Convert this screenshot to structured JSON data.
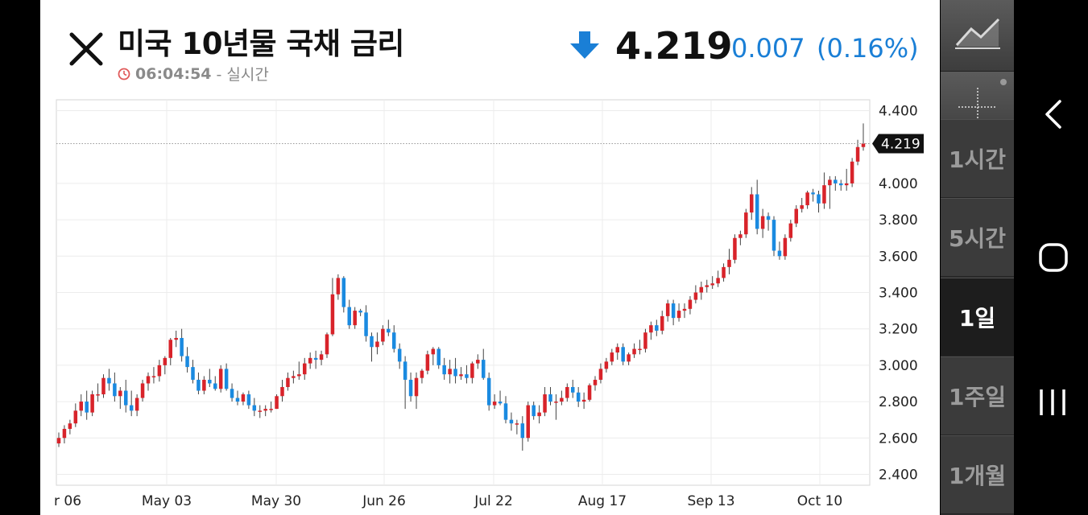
{
  "header": {
    "title": "미국 10년물 국채 금리",
    "time": "06:04:54",
    "status": "- 실시간",
    "price": "4.219",
    "change": "0.007",
    "change_pct": "(0.16%)",
    "direction": "down",
    "change_color": "#1a7fd6"
  },
  "toolbar": {
    "tools": [
      "line-chart-icon",
      "crosshair-icon"
    ],
    "timeframes": [
      {
        "label": "1시간",
        "active": false
      },
      {
        "label": "5시간",
        "active": false
      },
      {
        "label": "1일",
        "active": true
      },
      {
        "label": "1주일",
        "active": false
      },
      {
        "label": "1개월",
        "active": false
      }
    ]
  },
  "nav": {
    "icons": [
      "back-icon",
      "home-icon",
      "recents-icon"
    ]
  },
  "chart_data": {
    "type": "candlestick",
    "last_value_label": "4.219",
    "last_value": 4.219,
    "y_ticks": [
      "4.400",
      "4.000",
      "3.800",
      "3.600",
      "3.400",
      "3.200",
      "3.000",
      "2.800",
      "2.600",
      "2.400"
    ],
    "ylim": [
      2.34,
      4.46
    ],
    "x_ticks": [
      "r 06",
      "May 03",
      "May 30",
      "Jun 26",
      "Jul 22",
      "Aug 17",
      "Sep 13",
      "Oct 10"
    ],
    "up_color": "#d8232a",
    "down_color": "#1a8ae0",
    "grid": true,
    "candles": [
      {
        "o": 2.57,
        "h": 2.63,
        "l": 2.55,
        "c": 2.6
      },
      {
        "o": 2.6,
        "h": 2.67,
        "l": 2.57,
        "c": 2.65
      },
      {
        "o": 2.65,
        "h": 2.7,
        "l": 2.62,
        "c": 2.68
      },
      {
        "o": 2.68,
        "h": 2.79,
        "l": 2.66,
        "c": 2.75
      },
      {
        "o": 2.75,
        "h": 2.84,
        "l": 2.72,
        "c": 2.8
      },
      {
        "o": 2.8,
        "h": 2.86,
        "l": 2.7,
        "c": 2.74
      },
      {
        "o": 2.74,
        "h": 2.86,
        "l": 2.72,
        "c": 2.84
      },
      {
        "o": 2.84,
        "h": 2.9,
        "l": 2.8,
        "c": 2.84
      },
      {
        "o": 2.84,
        "h": 2.95,
        "l": 2.82,
        "c": 2.93
      },
      {
        "o": 2.93,
        "h": 2.98,
        "l": 2.86,
        "c": 2.9
      },
      {
        "o": 2.9,
        "h": 2.96,
        "l": 2.8,
        "c": 2.83
      },
      {
        "o": 2.83,
        "h": 2.88,
        "l": 2.76,
        "c": 2.86
      },
      {
        "o": 2.86,
        "h": 2.92,
        "l": 2.74,
        "c": 2.78
      },
      {
        "o": 2.78,
        "h": 2.86,
        "l": 2.72,
        "c": 2.75
      },
      {
        "o": 2.75,
        "h": 2.84,
        "l": 2.72,
        "c": 2.82
      },
      {
        "o": 2.82,
        "h": 2.92,
        "l": 2.8,
        "c": 2.9
      },
      {
        "o": 2.9,
        "h": 2.96,
        "l": 2.86,
        "c": 2.94
      },
      {
        "o": 2.94,
        "h": 2.99,
        "l": 2.9,
        "c": 2.94
      },
      {
        "o": 2.94,
        "h": 3.03,
        "l": 2.91,
        "c": 3.0
      },
      {
        "o": 3.0,
        "h": 3.05,
        "l": 2.95,
        "c": 3.04
      },
      {
        "o": 3.04,
        "h": 3.15,
        "l": 3.0,
        "c": 3.14
      },
      {
        "o": 3.14,
        "h": 3.19,
        "l": 3.1,
        "c": 3.15
      },
      {
        "o": 3.15,
        "h": 3.2,
        "l": 3.02,
        "c": 3.05
      },
      {
        "o": 3.05,
        "h": 3.1,
        "l": 2.96,
        "c": 2.99
      },
      {
        "o": 2.99,
        "h": 3.03,
        "l": 2.9,
        "c": 2.92
      },
      {
        "o": 2.92,
        "h": 2.96,
        "l": 2.84,
        "c": 2.86
      },
      {
        "o": 2.86,
        "h": 2.94,
        "l": 2.84,
        "c": 2.92
      },
      {
        "o": 2.92,
        "h": 2.98,
        "l": 2.88,
        "c": 2.9
      },
      {
        "o": 2.9,
        "h": 2.94,
        "l": 2.86,
        "c": 2.87
      },
      {
        "o": 2.87,
        "h": 3.0,
        "l": 2.85,
        "c": 2.98
      },
      {
        "o": 2.98,
        "h": 3.01,
        "l": 2.86,
        "c": 2.87
      },
      {
        "o": 2.87,
        "h": 2.9,
        "l": 2.8,
        "c": 2.82
      },
      {
        "o": 2.82,
        "h": 2.86,
        "l": 2.78,
        "c": 2.8
      },
      {
        "o": 2.8,
        "h": 2.85,
        "l": 2.78,
        "c": 2.84
      },
      {
        "o": 2.84,
        "h": 2.86,
        "l": 2.76,
        "c": 2.78
      },
      {
        "o": 2.78,
        "h": 2.82,
        "l": 2.72,
        "c": 2.75
      },
      {
        "o": 2.75,
        "h": 2.78,
        "l": 2.71,
        "c": 2.75
      },
      {
        "o": 2.75,
        "h": 2.78,
        "l": 2.72,
        "c": 2.76
      },
      {
        "o": 2.76,
        "h": 2.8,
        "l": 2.74,
        "c": 2.76
      },
      {
        "o": 2.76,
        "h": 2.84,
        "l": 2.76,
        "c": 2.83
      },
      {
        "o": 2.83,
        "h": 2.92,
        "l": 2.8,
        "c": 2.88
      },
      {
        "o": 2.88,
        "h": 2.96,
        "l": 2.86,
        "c": 2.93
      },
      {
        "o": 2.93,
        "h": 2.97,
        "l": 2.9,
        "c": 2.94
      },
      {
        "o": 2.94,
        "h": 3.02,
        "l": 2.92,
        "c": 2.95
      },
      {
        "o": 2.95,
        "h": 3.04,
        "l": 2.92,
        "c": 3.01
      },
      {
        "o": 3.01,
        "h": 3.07,
        "l": 2.98,
        "c": 3.04
      },
      {
        "o": 3.04,
        "h": 3.08,
        "l": 2.98,
        "c": 3.03
      },
      {
        "o": 3.03,
        "h": 3.08,
        "l": 3.0,
        "c": 3.06
      },
      {
        "o": 3.06,
        "h": 3.18,
        "l": 3.04,
        "c": 3.17
      },
      {
        "o": 3.17,
        "h": 3.48,
        "l": 3.16,
        "c": 3.39
      },
      {
        "o": 3.39,
        "h": 3.5,
        "l": 3.36,
        "c": 3.48
      },
      {
        "o": 3.48,
        "h": 3.49,
        "l": 3.29,
        "c": 3.32
      },
      {
        "o": 3.32,
        "h": 3.36,
        "l": 3.2,
        "c": 3.22
      },
      {
        "o": 3.22,
        "h": 3.32,
        "l": 3.2,
        "c": 3.3
      },
      {
        "o": 3.3,
        "h": 3.31,
        "l": 3.27,
        "c": 3.29
      },
      {
        "o": 3.29,
        "h": 3.33,
        "l": 3.13,
        "c": 3.16
      },
      {
        "o": 3.16,
        "h": 3.18,
        "l": 3.02,
        "c": 3.1
      },
      {
        "o": 3.1,
        "h": 3.18,
        "l": 3.06,
        "c": 3.13
      },
      {
        "o": 3.13,
        "h": 3.22,
        "l": 3.11,
        "c": 3.2
      },
      {
        "o": 3.2,
        "h": 3.25,
        "l": 3.16,
        "c": 3.18
      },
      {
        "o": 3.18,
        "h": 3.22,
        "l": 3.07,
        "c": 3.09
      },
      {
        "o": 3.09,
        "h": 3.12,
        "l": 2.98,
        "c": 3.02
      },
      {
        "o": 3.02,
        "h": 3.05,
        "l": 2.76,
        "c": 2.92
      },
      {
        "o": 2.92,
        "h": 2.96,
        "l": 2.8,
        "c": 2.83
      },
      {
        "o": 2.83,
        "h": 2.96,
        "l": 2.76,
        "c": 2.93
      },
      {
        "o": 2.93,
        "h": 2.98,
        "l": 2.9,
        "c": 2.97
      },
      {
        "o": 2.97,
        "h": 3.08,
        "l": 2.95,
        "c": 3.06
      },
      {
        "o": 3.06,
        "h": 3.1,
        "l": 3.0,
        "c": 3.09
      },
      {
        "o": 3.09,
        "h": 3.1,
        "l": 2.98,
        "c": 3.0
      },
      {
        "o": 3.0,
        "h": 3.04,
        "l": 2.92,
        "c": 2.95
      },
      {
        "o": 2.95,
        "h": 3.03,
        "l": 2.9,
        "c": 2.98
      },
      {
        "o": 2.98,
        "h": 3.04,
        "l": 2.9,
        "c": 2.94
      },
      {
        "o": 2.94,
        "h": 2.99,
        "l": 2.92,
        "c": 2.95
      },
      {
        "o": 2.95,
        "h": 3.0,
        "l": 2.9,
        "c": 2.93
      },
      {
        "o": 2.93,
        "h": 3.02,
        "l": 2.9,
        "c": 3.01
      },
      {
        "o": 3.01,
        "h": 3.06,
        "l": 2.98,
        "c": 3.03
      },
      {
        "o": 3.03,
        "h": 3.09,
        "l": 2.92,
        "c": 2.93
      },
      {
        "o": 2.93,
        "h": 2.96,
        "l": 2.75,
        "c": 2.78
      },
      {
        "o": 2.78,
        "h": 2.84,
        "l": 2.76,
        "c": 2.8
      },
      {
        "o": 2.8,
        "h": 2.86,
        "l": 2.78,
        "c": 2.79
      },
      {
        "o": 2.79,
        "h": 2.83,
        "l": 2.68,
        "c": 2.7
      },
      {
        "o": 2.7,
        "h": 2.74,
        "l": 2.64,
        "c": 2.68
      },
      {
        "o": 2.68,
        "h": 2.7,
        "l": 2.62,
        "c": 2.68
      },
      {
        "o": 2.68,
        "h": 2.72,
        "l": 2.53,
        "c": 2.6
      },
      {
        "o": 2.6,
        "h": 2.8,
        "l": 2.58,
        "c": 2.78
      },
      {
        "o": 2.78,
        "h": 2.8,
        "l": 2.7,
        "c": 2.72
      },
      {
        "o": 2.72,
        "h": 2.78,
        "l": 2.68,
        "c": 2.74
      },
      {
        "o": 2.74,
        "h": 2.88,
        "l": 2.72,
        "c": 2.84
      },
      {
        "o": 2.84,
        "h": 2.88,
        "l": 2.78,
        "c": 2.8
      },
      {
        "o": 2.8,
        "h": 2.84,
        "l": 2.7,
        "c": 2.8
      },
      {
        "o": 2.8,
        "h": 2.86,
        "l": 2.78,
        "c": 2.82
      },
      {
        "o": 2.82,
        "h": 2.9,
        "l": 2.8,
        "c": 2.88
      },
      {
        "o": 2.88,
        "h": 2.92,
        "l": 2.82,
        "c": 2.85
      },
      {
        "o": 2.85,
        "h": 2.88,
        "l": 2.77,
        "c": 2.8
      },
      {
        "o": 2.8,
        "h": 2.85,
        "l": 2.76,
        "c": 2.81
      },
      {
        "o": 2.81,
        "h": 2.9,
        "l": 2.8,
        "c": 2.89
      },
      {
        "o": 2.89,
        "h": 2.94,
        "l": 2.86,
        "c": 2.92
      },
      {
        "o": 2.92,
        "h": 3.01,
        "l": 2.9,
        "c": 2.98
      },
      {
        "o": 2.98,
        "h": 3.04,
        "l": 2.96,
        "c": 3.02
      },
      {
        "o": 3.02,
        "h": 3.09,
        "l": 3.0,
        "c": 3.07
      },
      {
        "o": 3.07,
        "h": 3.12,
        "l": 3.03,
        "c": 3.1
      },
      {
        "o": 3.1,
        "h": 3.12,
        "l": 3.0,
        "c": 3.02
      },
      {
        "o": 3.02,
        "h": 3.07,
        "l": 3.0,
        "c": 3.06
      },
      {
        "o": 3.06,
        "h": 3.12,
        "l": 3.04,
        "c": 3.09
      },
      {
        "o": 3.09,
        "h": 3.14,
        "l": 3.06,
        "c": 3.09
      },
      {
        "o": 3.09,
        "h": 3.2,
        "l": 3.07,
        "c": 3.18
      },
      {
        "o": 3.18,
        "h": 3.24,
        "l": 3.14,
        "c": 3.22
      },
      {
        "o": 3.22,
        "h": 3.25,
        "l": 3.16,
        "c": 3.19
      },
      {
        "o": 3.19,
        "h": 3.3,
        "l": 3.17,
        "c": 3.27
      },
      {
        "o": 3.27,
        "h": 3.36,
        "l": 3.24,
        "c": 3.34
      },
      {
        "o": 3.34,
        "h": 3.36,
        "l": 3.22,
        "c": 3.26
      },
      {
        "o": 3.26,
        "h": 3.34,
        "l": 3.24,
        "c": 3.3
      },
      {
        "o": 3.3,
        "h": 3.34,
        "l": 3.26,
        "c": 3.31
      },
      {
        "o": 3.31,
        "h": 3.38,
        "l": 3.28,
        "c": 3.36
      },
      {
        "o": 3.36,
        "h": 3.44,
        "l": 3.34,
        "c": 3.4
      },
      {
        "o": 3.4,
        "h": 3.46,
        "l": 3.36,
        "c": 3.43
      },
      {
        "o": 3.43,
        "h": 3.47,
        "l": 3.4,
        "c": 3.44
      },
      {
        "o": 3.44,
        "h": 3.49,
        "l": 3.42,
        "c": 3.45
      },
      {
        "o": 3.45,
        "h": 3.52,
        "l": 3.43,
        "c": 3.48
      },
      {
        "o": 3.48,
        "h": 3.56,
        "l": 3.46,
        "c": 3.54
      },
      {
        "o": 3.54,
        "h": 3.64,
        "l": 3.5,
        "c": 3.58
      },
      {
        "o": 3.58,
        "h": 3.72,
        "l": 3.56,
        "c": 3.7
      },
      {
        "o": 3.7,
        "h": 3.74,
        "l": 3.66,
        "c": 3.72
      },
      {
        "o": 3.72,
        "h": 3.86,
        "l": 3.7,
        "c": 3.84
      },
      {
        "o": 3.84,
        "h": 3.98,
        "l": 3.8,
        "c": 3.94
      },
      {
        "o": 3.94,
        "h": 4.02,
        "l": 3.72,
        "c": 3.75
      },
      {
        "o": 3.75,
        "h": 3.86,
        "l": 3.7,
        "c": 3.82
      },
      {
        "o": 3.82,
        "h": 3.84,
        "l": 3.74,
        "c": 3.8
      },
      {
        "o": 3.8,
        "h": 3.82,
        "l": 3.6,
        "c": 3.63
      },
      {
        "o": 3.63,
        "h": 3.68,
        "l": 3.58,
        "c": 3.6
      },
      {
        "o": 3.6,
        "h": 3.72,
        "l": 3.58,
        "c": 3.7
      },
      {
        "o": 3.7,
        "h": 3.8,
        "l": 3.68,
        "c": 3.78
      },
      {
        "o": 3.78,
        "h": 3.88,
        "l": 3.76,
        "c": 3.86
      },
      {
        "o": 3.86,
        "h": 3.92,
        "l": 3.84,
        "c": 3.88
      },
      {
        "o": 3.88,
        "h": 3.96,
        "l": 3.86,
        "c": 3.95
      },
      {
        "o": 3.95,
        "h": 3.97,
        "l": 3.9,
        "c": 3.94
      },
      {
        "o": 3.94,
        "h": 3.96,
        "l": 3.84,
        "c": 3.89
      },
      {
        "o": 3.89,
        "h": 4.06,
        "l": 3.86,
        "c": 3.99
      },
      {
        "o": 3.99,
        "h": 4.04,
        "l": 3.86,
        "c": 4.02
      },
      {
        "o": 4.02,
        "h": 4.04,
        "l": 3.96,
        "c": 4.0
      },
      {
        "o": 4.0,
        "h": 4.02,
        "l": 3.96,
        "c": 3.99
      },
      {
        "o": 3.99,
        "h": 4.08,
        "l": 3.96,
        "c": 4.0
      },
      {
        "o": 4.0,
        "h": 4.14,
        "l": 3.98,
        "c": 4.12
      },
      {
        "o": 4.12,
        "h": 4.24,
        "l": 4.1,
        "c": 4.2
      },
      {
        "o": 4.2,
        "h": 4.33,
        "l": 4.18,
        "c": 4.22
      }
    ]
  }
}
